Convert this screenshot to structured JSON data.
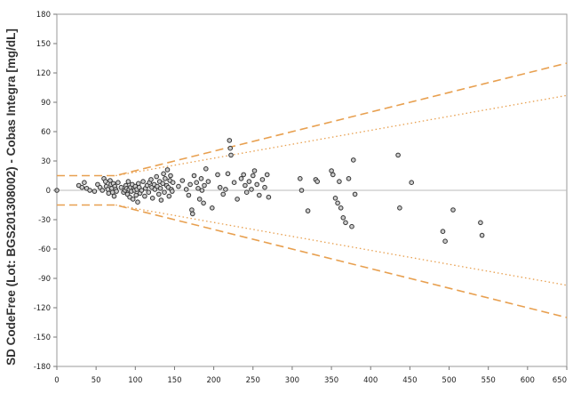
{
  "chart_data": {
    "type": "scatter",
    "title": "",
    "xlabel": "",
    "ylabel": "SD CodeFree (Lot: BGS201308002) - Cobas Integra [mg/dL]",
    "xlim": [
      0,
      650
    ],
    "ylim": [
      -180,
      180
    ],
    "x_ticks": [
      0,
      50,
      100,
      150,
      200,
      250,
      300,
      350,
      400,
      450,
      500,
      550,
      600,
      650
    ],
    "y_ticks": [
      180,
      150,
      120,
      90,
      60,
      30,
      0,
      -30,
      -60,
      -90,
      -120,
      -150,
      -180
    ],
    "grid": false,
    "colors": {
      "limit_lines": "#e8a050",
      "zero_line": "#bbbbbb",
      "points_edge": "#333333",
      "points_fill": "#cccccc"
    },
    "reference_lines": [
      {
        "style": "dashed",
        "points": [
          [
            0,
            15
          ],
          [
            75,
            15
          ],
          [
            650,
            130
          ]
        ]
      },
      {
        "style": "dashed",
        "points": [
          [
            0,
            -15
          ],
          [
            75,
            -15
          ],
          [
            650,
            -130
          ]
        ]
      },
      {
        "style": "dotted",
        "points": [
          [
            75,
            15
          ],
          [
            650,
            97
          ]
        ]
      },
      {
        "style": "dotted",
        "points": [
          [
            75,
            -15
          ],
          [
            650,
            -97
          ]
        ]
      },
      {
        "style": "solid",
        "points": [
          [
            0,
            0
          ],
          [
            650,
            0
          ]
        ]
      }
    ],
    "points": [
      [
        0,
        0
      ],
      [
        28,
        5
      ],
      [
        32,
        3
      ],
      [
        35,
        8
      ],
      [
        38,
        2
      ],
      [
        42,
        0
      ],
      [
        48,
        -1
      ],
      [
        52,
        6
      ],
      [
        55,
        3
      ],
      [
        58,
        0
      ],
      [
        60,
        12
      ],
      [
        62,
        9
      ],
      [
        63,
        4
      ],
      [
        65,
        1
      ],
      [
        66,
        -3
      ],
      [
        68,
        10
      ],
      [
        69,
        6
      ],
      [
        70,
        2
      ],
      [
        71,
        -2
      ],
      [
        72,
        7
      ],
      [
        73,
        -6
      ],
      [
        74,
        4
      ],
      [
        75,
        1
      ],
      [
        76,
        -1
      ],
      [
        78,
        8
      ],
      [
        82,
        3
      ],
      [
        85,
        -2
      ],
      [
        87,
        0
      ],
      [
        88,
        5
      ],
      [
        89,
        2
      ],
      [
        90,
        -4
      ],
      [
        91,
        9
      ],
      [
        92,
        1
      ],
      [
        93,
        -7
      ],
      [
        94,
        3
      ],
      [
        95,
        -1
      ],
      [
        96,
        6
      ],
      [
        97,
        -9
      ],
      [
        98,
        2
      ],
      [
        99,
        0
      ],
      [
        100,
        4
      ],
      [
        101,
        -5
      ],
      [
        102,
        1
      ],
      [
        103,
        -12
      ],
      [
        104,
        7
      ],
      [
        105,
        3
      ],
      [
        106,
        -3
      ],
      [
        108,
        0
      ],
      [
        110,
        9
      ],
      [
        112,
        -6
      ],
      [
        113,
        2
      ],
      [
        115,
        5
      ],
      [
        117,
        -2
      ],
      [
        118,
        8
      ],
      [
        120,
        11
      ],
      [
        121,
        3
      ],
      [
        122,
        -8
      ],
      [
        124,
        6
      ],
      [
        125,
        1
      ],
      [
        127,
        14
      ],
      [
        128,
        4
      ],
      [
        130,
        -4
      ],
      [
        131,
        9
      ],
      [
        132,
        2
      ],
      [
        133,
        -10
      ],
      [
        135,
        7
      ],
      [
        136,
        17
      ],
      [
        137,
        -2
      ],
      [
        138,
        12
      ],
      [
        140,
        5
      ],
      [
        141,
        21
      ],
      [
        142,
        3
      ],
      [
        143,
        -6
      ],
      [
        144,
        10
      ],
      [
        145,
        15
      ],
      [
        146,
        1
      ],
      [
        147,
        -1
      ],
      [
        148,
        8
      ],
      [
        155,
        4
      ],
      [
        160,
        10
      ],
      [
        165,
        1
      ],
      [
        168,
        -5
      ],
      [
        170,
        6
      ],
      [
        172,
        -20
      ],
      [
        173,
        -24
      ],
      [
        175,
        15
      ],
      [
        178,
        8
      ],
      [
        180,
        2
      ],
      [
        182,
        -9
      ],
      [
        184,
        12
      ],
      [
        185,
        0
      ],
      [
        187,
        -13
      ],
      [
        188,
        5
      ],
      [
        190,
        22
      ],
      [
        193,
        9
      ],
      [
        198,
        -18
      ],
      [
        205,
        16
      ],
      [
        208,
        3
      ],
      [
        212,
        -4
      ],
      [
        215,
        1
      ],
      [
        218,
        17
      ],
      [
        220,
        51
      ],
      [
        221,
        43
      ],
      [
        222,
        36
      ],
      [
        226,
        8
      ],
      [
        230,
        -9
      ],
      [
        235,
        12
      ],
      [
        238,
        16
      ],
      [
        240,
        5
      ],
      [
        242,
        -2
      ],
      [
        245,
        9
      ],
      [
        248,
        1
      ],
      [
        250,
        15
      ],
      [
        252,
        20
      ],
      [
        255,
        6
      ],
      [
        258,
        -5
      ],
      [
        262,
        11
      ],
      [
        265,
        3
      ],
      [
        268,
        16
      ],
      [
        270,
        -7
      ],
      [
        310,
        12
      ],
      [
        312,
        0
      ],
      [
        320,
        -21
      ],
      [
        330,
        11
      ],
      [
        332,
        9
      ],
      [
        350,
        20
      ],
      [
        352,
        16
      ],
      [
        355,
        -8
      ],
      [
        358,
        -13
      ],
      [
        360,
        9
      ],
      [
        362,
        -18
      ],
      [
        365,
        -28
      ],
      [
        368,
        -33
      ],
      [
        372,
        12
      ],
      [
        376,
        -37
      ],
      [
        378,
        31
      ],
      [
        380,
        -4
      ],
      [
        435,
        36
      ],
      [
        437,
        -18
      ],
      [
        452,
        8
      ],
      [
        492,
        -42
      ],
      [
        495,
        -52
      ],
      [
        505,
        -20
      ],
      [
        540,
        -33
      ],
      [
        542,
        -46
      ]
    ]
  }
}
